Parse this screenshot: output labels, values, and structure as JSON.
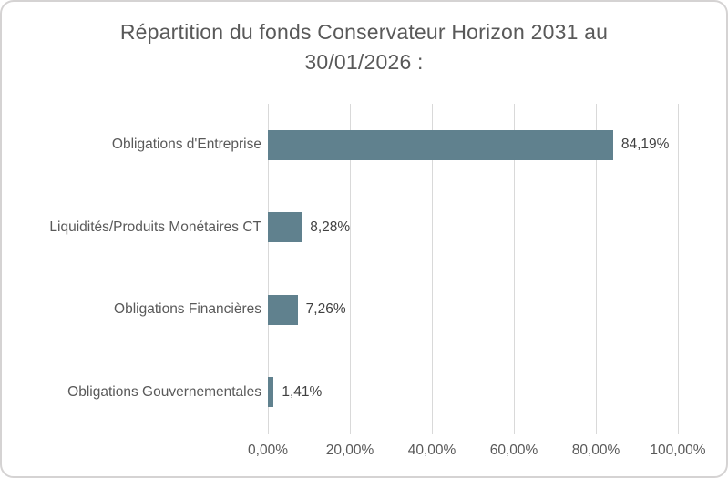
{
  "chart_data": {
    "type": "bar",
    "orientation": "horizontal",
    "title": "Répartition du fonds Conservateur Horizon 2031 au 30/01/2026 :",
    "title_lines": [
      "Répartition du fonds Conservateur Horizon 2031 au",
      "30/01/2026 :"
    ],
    "categories": [
      "Obligations d'Entreprise",
      "Liquidités/Produits Monétaires CT",
      "Obligations Financières",
      "Obligations Gouvernementales"
    ],
    "values": [
      84.19,
      8.28,
      7.26,
      1.41
    ],
    "value_labels": [
      "84,19%",
      "8,28%",
      "7,26%",
      "1,41%"
    ],
    "x_ticks": [
      "0,00%",
      "20,00%",
      "40,00%",
      "60,00%",
      "80,00%",
      "100,00%"
    ],
    "x_tick_values": [
      0,
      20,
      40,
      60,
      80,
      100
    ],
    "xlim": [
      0,
      100
    ],
    "xlabel": "",
    "ylabel": "",
    "grid": true,
    "legend": false,
    "colors": {
      "bar": "#60818e",
      "gridline": "#d9d9d9",
      "title_text": "#595959",
      "axis_text": "#595959",
      "value_text": "#404040",
      "frame_border": "#d5d3d3",
      "background": "#ffffff"
    }
  }
}
